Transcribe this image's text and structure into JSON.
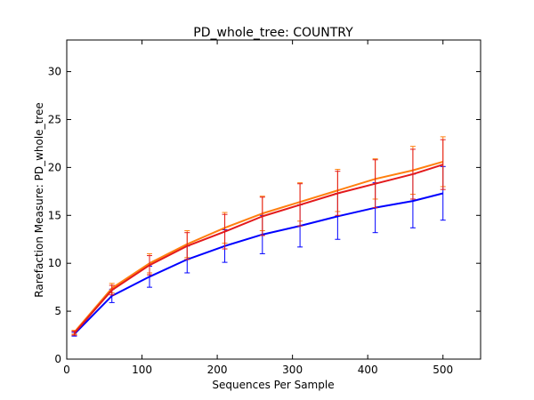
{
  "chart_data": {
    "type": "line",
    "title": "PD_whole_tree: COUNTRY",
    "xlabel": "Sequences Per Sample",
    "ylabel": "Rarefaction Measure: PD_whole_tree",
    "xlim": [
      0,
      550
    ],
    "ylim": [
      0,
      33.3
    ],
    "xticks": [
      0,
      100,
      200,
      300,
      400,
      500
    ],
    "yticks": [
      0,
      5,
      10,
      15,
      20,
      25,
      30
    ],
    "grid": false,
    "legend": "none",
    "x": [
      10,
      60,
      110,
      160,
      210,
      260,
      310,
      360,
      410,
      460,
      500
    ],
    "series": [
      {
        "color": "#0000ff",
        "values": [
          2.6,
          6.6,
          8.6,
          10.4,
          11.8,
          13.0,
          13.9,
          14.9,
          15.8,
          16.5,
          17.3
        ],
        "error": [
          0.2,
          0.7,
          1.1,
          1.4,
          1.7,
          2.0,
          2.2,
          2.4,
          2.6,
          2.8,
          2.8
        ]
      },
      {
        "color": "#ff7f0e",
        "values": [
          2.8,
          7.4,
          10.0,
          12.0,
          13.7,
          15.2,
          16.4,
          17.6,
          18.8,
          19.7,
          20.6
        ],
        "error": [
          0.2,
          0.5,
          1.0,
          1.4,
          1.6,
          1.8,
          2.0,
          2.2,
          2.1,
          2.5,
          2.6
        ]
      },
      {
        "color": "#e31a1c",
        "values": [
          2.7,
          7.2,
          9.8,
          11.8,
          13.3,
          14.9,
          16.1,
          17.3,
          18.3,
          19.3,
          20.3
        ],
        "error": [
          0.2,
          0.5,
          1.0,
          1.4,
          1.8,
          2.0,
          2.2,
          2.3,
          2.5,
          2.6,
          2.6
        ]
      }
    ]
  }
}
